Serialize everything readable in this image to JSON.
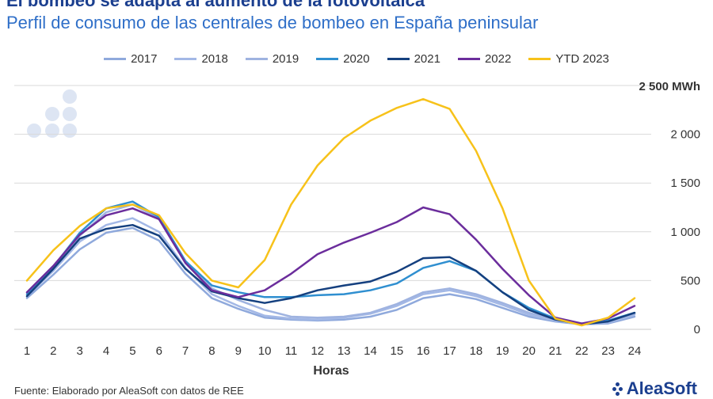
{
  "header": {
    "title": "El bombeo se adapta al aumento de la fotovoltaica",
    "subtitle": "Perfil de consumo de las centrales de bombeo en España peninsular"
  },
  "footer": {
    "source": "Fuente: Elaborado por AleaSoft con datos de REE",
    "brand": "AleaSoft"
  },
  "chart_data": {
    "type": "line",
    "xlabel": "Horas",
    "ylabel": "",
    "unit_label": "2 500 MWh",
    "ylim": [
      0,
      2500
    ],
    "yticks": [
      0,
      500,
      1000,
      1500,
      2000
    ],
    "ytick_labels": [
      "0",
      "500",
      "1 000",
      "1 500",
      "2 000"
    ],
    "grid": true,
    "legend_position": "top",
    "x": [
      1,
      2,
      3,
      4,
      5,
      6,
      7,
      8,
      9,
      10,
      11,
      12,
      13,
      14,
      15,
      16,
      17,
      18,
      19,
      20,
      21,
      22,
      23,
      24
    ],
    "series": [
      {
        "name": "2017",
        "color": "#8fa9dc",
        "width": 2.5,
        "values": [
          320,
          560,
          820,
          990,
          1040,
          910,
          570,
          320,
          210,
          120,
          100,
          90,
          100,
          130,
          200,
          320,
          360,
          310,
          220,
          130,
          80,
          50,
          60,
          130
        ]
      },
      {
        "name": "2018",
        "color": "#a3b8e6",
        "width": 2.5,
        "values": [
          340,
          600,
          900,
          1070,
          1140,
          1000,
          630,
          360,
          240,
          140,
          110,
          100,
          120,
          160,
          240,
          360,
          400,
          340,
          250,
          150,
          90,
          50,
          70,
          150
        ]
      },
      {
        "name": "2019",
        "color": "#9fb3e0",
        "width": 2.5,
        "values": [
          380,
          650,
          960,
          1200,
          1280,
          1140,
          700,
          420,
          300,
          200,
          130,
          120,
          130,
          170,
          260,
          380,
          420,
          360,
          270,
          170,
          100,
          60,
          80,
          160
        ]
      },
      {
        "name": "2020",
        "color": "#2f8fd0",
        "width": 2.5,
        "values": [
          360,
          640,
          990,
          1240,
          1310,
          1150,
          700,
          450,
          380,
          330,
          330,
          350,
          360,
          400,
          470,
          630,
          700,
          600,
          380,
          220,
          110,
          50,
          90,
          170
        ]
      },
      {
        "name": "2021",
        "color": "#15407f",
        "width": 2.5,
        "values": [
          340,
          620,
          930,
          1030,
          1070,
          960,
          620,
          390,
          320,
          270,
          320,
          400,
          450,
          490,
          590,
          730,
          740,
          600,
          380,
          200,
          100,
          50,
          80,
          170
        ]
      },
      {
        "name": "2022",
        "color": "#6b2d9c",
        "width": 2.5,
        "values": [
          380,
          650,
          970,
          1170,
          1240,
          1130,
          680,
          400,
          330,
          400,
          570,
          770,
          890,
          990,
          1100,
          1250,
          1180,
          920,
          620,
          350,
          120,
          60,
          110,
          240
        ]
      },
      {
        "name": "YTD 2023",
        "color": "#f7c21a",
        "width": 2.5,
        "values": [
          500,
          810,
          1060,
          1240,
          1280,
          1170,
          780,
          500,
          430,
          710,
          1280,
          1680,
          1960,
          2140,
          2270,
          2360,
          2260,
          1830,
          1240,
          500,
          110,
          40,
          120,
          320
        ]
      }
    ]
  }
}
